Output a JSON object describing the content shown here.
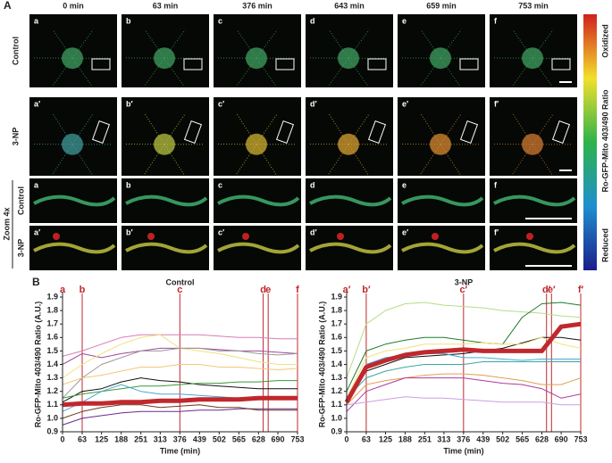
{
  "panel_a": {
    "label": "A",
    "times": [
      "0 min",
      "63 min",
      "376 min",
      "643 min",
      "659 min",
      "753 min"
    ],
    "rows": [
      {
        "label": "Control",
        "letters": [
          "a",
          "b",
          "c",
          "d",
          "e",
          "f"
        ]
      },
      {
        "label": "3-NP",
        "letters": [
          "a′",
          "b′",
          "c′",
          "d′",
          "e′",
          "f′"
        ]
      },
      {
        "label": "Control",
        "letters": [
          "a",
          "b",
          "c",
          "d",
          "e",
          "f"
        ]
      },
      {
        "label": "3-NP",
        "letters": [
          "a′",
          "b′",
          "c′",
          "d′",
          "e′",
          "f′"
        ]
      }
    ],
    "zoom_label": "Zoom 4x",
    "colorbar": {
      "top": "Oxidized",
      "middle": "Ro-GFP-Mito 403/490 Ratio",
      "bottom": "Reduced"
    }
  },
  "panel_b_label": "B",
  "chart_data": [
    {
      "type": "line",
      "title": "Control",
      "x_label": "Time (min)",
      "y_label": "Ro-GFP-Mito 403/490 Ratio (A.U.)",
      "x": [
        0,
        63,
        125,
        188,
        251,
        313,
        376,
        439,
        502,
        565,
        628,
        690,
        753
      ],
      "xlim": [
        0,
        753
      ],
      "xticks": [
        0,
        63,
        125,
        188,
        251,
        313,
        376,
        439,
        502,
        565,
        628,
        690,
        753
      ],
      "ylim": [
        0.9,
        1.9
      ],
      "yticks": [
        0.9,
        {
          "value": 1,
          "label": "1.0"
        },
        1.1,
        1.2,
        1.3,
        1.4,
        1.5,
        1.6,
        1.7,
        1.8,
        1.9
      ],
      "event_color": "#c0282d",
      "events": [
        {
          "label": "a",
          "x": 0
        },
        {
          "label": "b",
          "x": 63
        },
        {
          "label": "c",
          "x": 376
        },
        {
          "label": "d",
          "x": 643
        },
        {
          "label": "e",
          "x": 659
        },
        {
          "label": "f",
          "x": 753
        }
      ],
      "series": [
        {
          "color": "#d77fb4",
          "values": [
            1.46,
            1.5,
            1.55,
            1.6,
            1.62,
            1.62,
            1.62,
            1.62,
            1.61,
            1.6,
            1.6,
            1.59,
            1.59
          ]
        },
        {
          "color": "#a04a9a",
          "values": [
            1.4,
            1.48,
            1.45,
            1.48,
            1.5,
            1.52,
            1.52,
            1.52,
            1.51,
            1.5,
            1.5,
            1.49,
            1.48
          ]
        },
        {
          "color": "#f2e27a",
          "values": [
            1.3,
            1.4,
            1.48,
            1.55,
            1.6,
            1.62,
            1.52,
            1.5,
            1.48,
            1.45,
            1.42,
            1.4,
            1.4
          ]
        },
        {
          "color": "#999999",
          "values": [
            1.15,
            1.3,
            1.4,
            1.45,
            1.5,
            1.5,
            1.52,
            1.52,
            1.5,
            1.5,
            1.48,
            1.47,
            1.48
          ]
        },
        {
          "color": "#f5c67a",
          "values": [
            1.25,
            1.3,
            1.32,
            1.35,
            1.38,
            1.38,
            1.4,
            1.4,
            1.38,
            1.38,
            1.37,
            1.36,
            1.37
          ]
        },
        {
          "color": "#111111",
          "values": [
            1.12,
            1.2,
            1.22,
            1.27,
            1.3,
            1.28,
            1.27,
            1.25,
            1.24,
            1.23,
            1.22,
            1.22,
            1.22
          ]
        },
        {
          "color": "#3a9a3a",
          "values": [
            1.15,
            1.18,
            1.2,
            1.22,
            1.24,
            1.24,
            1.25,
            1.26,
            1.26,
            1.27,
            1.27,
            1.28,
            1.28
          ]
        },
        {
          "color": "#4aa6d8",
          "values": [
            1.05,
            1.12,
            1.2,
            1.25,
            1.2,
            1.18,
            1.18,
            1.17,
            1.16,
            1.15,
            1.15,
            1.14,
            1.14
          ]
        },
        {
          "color": "#6a2a8a",
          "values": [
            0.95,
            1.0,
            1.02,
            1.04,
            1.05,
            1.05,
            1.05,
            1.06,
            1.06,
            1.07,
            1.07,
            1.07,
            1.07
          ]
        },
        {
          "color": "#6b3b20",
          "values": [
            1.0,
            1.05,
            1.08,
            1.1,
            1.1,
            1.08,
            1.09,
            1.1,
            1.08,
            1.08,
            1.06,
            1.06,
            1.06
          ]
        },
        {
          "color": "#c0282d",
          "line_width": 5,
          "values": [
            1.1,
            1.11,
            1.11,
            1.12,
            1.12,
            1.13,
            1.13,
            1.14,
            1.14,
            1.14,
            1.15,
            1.15,
            1.15
          ]
        }
      ]
    },
    {
      "type": "line",
      "title": "3-NP",
      "x_label": "Time (min)",
      "y_label": "Ro-GFP-Mito 403/490 Ratio (A.U.)",
      "x": [
        0,
        63,
        125,
        188,
        251,
        313,
        376,
        439,
        502,
        565,
        628,
        690,
        753
      ],
      "xlim": [
        0,
        753
      ],
      "xticks": [
        0,
        63,
        125,
        188,
        251,
        313,
        376,
        439,
        502,
        565,
        628,
        690,
        753
      ],
      "ylim": [
        0.9,
        1.9
      ],
      "yticks": [
        0.9,
        {
          "value": 1,
          "label": "1.0"
        },
        1.1,
        1.2,
        1.3,
        1.4,
        1.5,
        1.6,
        1.7,
        1.8,
        1.9
      ],
      "event_color": "#c0282d",
      "events": [
        {
          "label": "a′",
          "x": 0
        },
        {
          "label": "b′",
          "x": 63
        },
        {
          "label": "c′",
          "x": 376
        },
        {
          "label": "d′",
          "x": 643
        },
        {
          "label": "e′",
          "x": 659
        },
        {
          "label": "f′",
          "x": 753
        }
      ],
      "series": [
        {
          "color": "#b5dc8a",
          "values": [
            1.3,
            1.7,
            1.8,
            1.85,
            1.86,
            1.84,
            1.83,
            1.82,
            1.8,
            1.79,
            1.78,
            1.76,
            1.75
          ]
        },
        {
          "color": "#1e7a2e",
          "values": [
            1.2,
            1.5,
            1.55,
            1.58,
            1.6,
            1.6,
            1.58,
            1.56,
            1.55,
            1.75,
            1.85,
            1.86,
            1.84
          ]
        },
        {
          "color": "#111111",
          "values": [
            1.1,
            1.35,
            1.4,
            1.45,
            1.46,
            1.47,
            1.48,
            1.5,
            1.52,
            1.56,
            1.6,
            1.6,
            1.58
          ]
        },
        {
          "color": "#f2e27a",
          "values": [
            1.15,
            1.45,
            1.5,
            1.52,
            1.55,
            1.55,
            1.55,
            1.56,
            1.55,
            1.55,
            1.6,
            1.55,
            1.52
          ]
        },
        {
          "color": "#4aa6d8",
          "values": [
            1.1,
            1.4,
            1.45,
            1.47,
            1.48,
            1.48,
            1.45,
            1.45,
            1.44,
            1.43,
            1.44,
            1.44,
            1.44
          ]
        },
        {
          "color": "#3aa8a0",
          "values": [
            1.15,
            1.3,
            1.35,
            1.38,
            1.4,
            1.4,
            1.4,
            1.42,
            1.42,
            1.42,
            1.42,
            1.42,
            1.42
          ]
        },
        {
          "color": "#e0a050",
          "values": [
            1.1,
            1.25,
            1.28,
            1.3,
            1.32,
            1.33,
            1.33,
            1.32,
            1.3,
            1.28,
            1.25,
            1.25,
            1.3
          ]
        },
        {
          "color": "#b03aa0",
          "values": [
            1.05,
            1.2,
            1.25,
            1.3,
            1.3,
            1.3,
            1.3,
            1.28,
            1.26,
            1.25,
            1.22,
            1.15,
            1.18
          ]
        },
        {
          "color": "#c9a0e0",
          "values": [
            1.1,
            1.12,
            1.14,
            1.16,
            1.15,
            1.15,
            1.14,
            1.13,
            1.12,
            1.12,
            1.12,
            1.1,
            1.1
          ]
        },
        {
          "color": "#c0282d",
          "line_width": 5,
          "values": [
            1.12,
            1.38,
            1.43,
            1.47,
            1.49,
            1.5,
            1.51,
            1.5,
            1.5,
            1.5,
            1.5,
            1.68,
            1.7
          ]
        }
      ]
    }
  ]
}
